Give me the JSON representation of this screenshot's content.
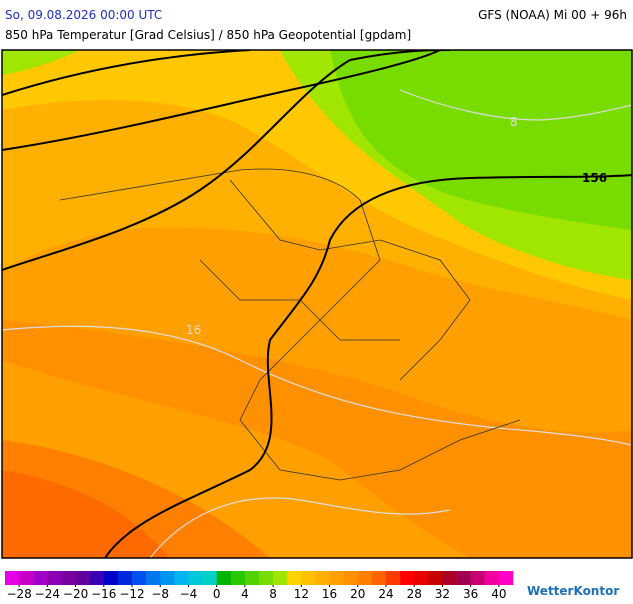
{
  "header": {
    "datetime": "So, 09.08.2026 00:00 UTC",
    "model": "GFS (NOAA) Mi 00 + 96h",
    "subtitle": "850 hPa Temperatur [Grad Celsius] / 850 hPa Geopotential [gpdam]"
  },
  "map": {
    "contour_labels": [
      "8",
      "156",
      "16"
    ]
  },
  "colorbar": {
    "range": [
      -30,
      42
    ],
    "colors": [
      "#e600e6",
      "#c800c8",
      "#a000c8",
      "#8c00b4",
      "#7800a0",
      "#6400a0",
      "#3c00b4",
      "#0000c8",
      "#0028dc",
      "#0050f0",
      "#0078f0",
      "#0096f0",
      "#00b4f0",
      "#00c8dc",
      "#00d2c8",
      "#00b400",
      "#28c800",
      "#50d200",
      "#78dc00",
      "#a0e600",
      "#ffd200",
      "#ffc000",
      "#ffb000",
      "#ffa000",
      "#ff9000",
      "#ff8000",
      "#ff6400",
      "#ff3c00",
      "#ff0000",
      "#e60000",
      "#c80000",
      "#aa0028",
      "#a00050",
      "#c80078",
      "#f000a0",
      "#ff00c8"
    ],
    "ticks": [
      {
        "value": -28,
        "label": "−28"
      },
      {
        "value": -24,
        "label": "−24"
      },
      {
        "value": -20,
        "label": "−20"
      },
      {
        "value": -16,
        "label": "−16"
      },
      {
        "value": -12,
        "label": "−12"
      },
      {
        "value": -8,
        "label": "−8"
      },
      {
        "value": -4,
        "label": "−4"
      },
      0,
      4,
      8,
      12,
      16,
      20,
      24,
      28,
      32,
      36,
      40
    ]
  },
  "logo": "WetterKontor"
}
